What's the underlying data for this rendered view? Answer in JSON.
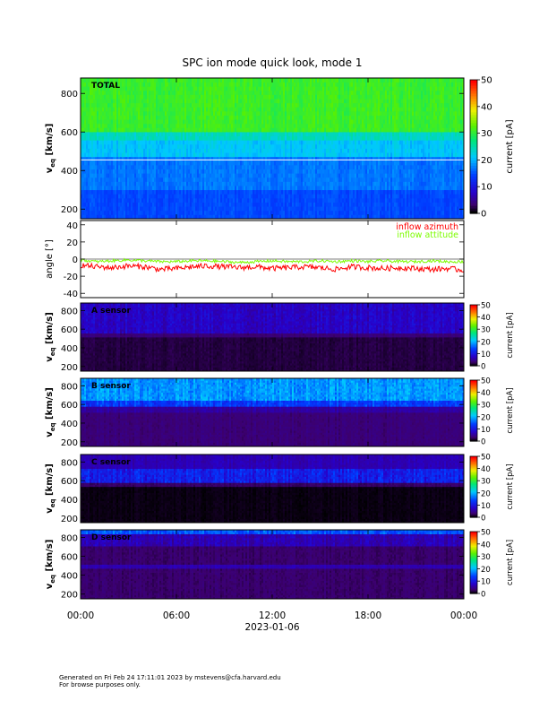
{
  "chart_data": [
    {
      "type": "heatmap",
      "panel": "total",
      "title": "SPC ion mode quick look, mode 1",
      "label": "TOTAL",
      "ylabel": "v_eq [km/s]",
      "ylim": [
        150,
        880
      ],
      "yticks": [
        200,
        400,
        600,
        800
      ],
      "xlim": [
        0,
        24
      ],
      "reference_line_kms": 455,
      "colorbar": {
        "label": "current [pA]",
        "range": [
          0,
          50
        ],
        "ticks": [
          0,
          10,
          20,
          30,
          40,
          50
        ]
      }
    },
    {
      "type": "line",
      "panel": "angle",
      "ylabel": "angle [°]",
      "ylim": [
        -45,
        45
      ],
      "yticks": [
        -40,
        -20,
        0,
        20,
        40
      ],
      "xlim": [
        0,
        24
      ],
      "series": [
        {
          "name": "inflow azimuth",
          "color": "#ff0000",
          "x": [
            0,
            1,
            2,
            3,
            4,
            5,
            6,
            7,
            8,
            9,
            10,
            11,
            12,
            13,
            14,
            15,
            16,
            17,
            18,
            19,
            20,
            21,
            22,
            23,
            24
          ],
          "values": [
            -7,
            -9,
            -10,
            -8,
            -9,
            -12,
            -11,
            -9,
            -8,
            -9,
            -10,
            -9,
            -11,
            -10,
            -9,
            -10,
            -12,
            -9,
            -10,
            -11,
            -10,
            -11,
            -12,
            -11,
            -13
          ]
        },
        {
          "name": "inflow attitude",
          "color": "#7cfc00",
          "x": [
            0,
            1,
            2,
            3,
            4,
            5,
            6,
            7,
            8,
            9,
            10,
            11,
            12,
            13,
            14,
            15,
            16,
            17,
            18,
            19,
            20,
            21,
            22,
            23,
            24
          ],
          "values": [
            -1,
            -3,
            -2,
            -1,
            -2,
            -3,
            -3,
            -2,
            -2,
            -3,
            -4,
            -3,
            -2,
            -3,
            -3,
            -2,
            -3,
            -2,
            -3,
            -2,
            -3,
            -3,
            -2,
            -3,
            -3
          ]
        }
      ]
    },
    {
      "type": "heatmap",
      "panel": "sensor-a",
      "label": "A sensor",
      "ylabel": "v_eq [km/s]",
      "ylim": [
        150,
        880
      ],
      "yticks": [
        200,
        400,
        600,
        800
      ],
      "xlim": [
        0,
        24
      ],
      "colorbar": {
        "label": "current [pA]",
        "range": [
          0,
          50
        ],
        "ticks": [
          0,
          10,
          20,
          30,
          40,
          50
        ]
      }
    },
    {
      "type": "heatmap",
      "panel": "sensor-b",
      "label": "B sensor",
      "ylabel": "v_eq [km/s]",
      "ylim": [
        150,
        880
      ],
      "yticks": [
        200,
        400,
        600,
        800
      ],
      "xlim": [
        0,
        24
      ],
      "colorbar": {
        "label": "current [pA]",
        "range": [
          0,
          50
        ],
        "ticks": [
          0,
          10,
          20,
          30,
          40,
          50
        ]
      }
    },
    {
      "type": "heatmap",
      "panel": "sensor-c",
      "label": "C sensor",
      "ylabel": "v_eq [km/s]",
      "ylim": [
        150,
        880
      ],
      "yticks": [
        200,
        400,
        600,
        800
      ],
      "xlim": [
        0,
        24
      ],
      "colorbar": {
        "label": "current [pA]",
        "range": [
          0,
          50
        ],
        "ticks": [
          0,
          10,
          20,
          30,
          40,
          50
        ]
      }
    },
    {
      "type": "heatmap",
      "panel": "sensor-d",
      "label": "D sensor",
      "ylabel": "v_eq [km/s]",
      "ylim": [
        150,
        880
      ],
      "yticks": [
        200,
        400,
        600,
        800
      ],
      "xlim": [
        0,
        24
      ],
      "colorbar": {
        "label": "current [pA]",
        "range": [
          0,
          50
        ],
        "ticks": [
          0,
          10,
          20,
          30,
          40,
          50
        ]
      }
    }
  ],
  "xaxis": {
    "tick_labels": [
      "00:00",
      "06:00",
      "12:00",
      "18:00",
      "00:00"
    ],
    "tick_hours": [
      0,
      6,
      12,
      18,
      24
    ],
    "date_label": "2023-01-06"
  },
  "footer": {
    "line1": "Generated on Fri Feb 24 17:11:01 2023 by mstevens@cfa.harvard.edu",
    "line2": "For browse purposes only."
  }
}
